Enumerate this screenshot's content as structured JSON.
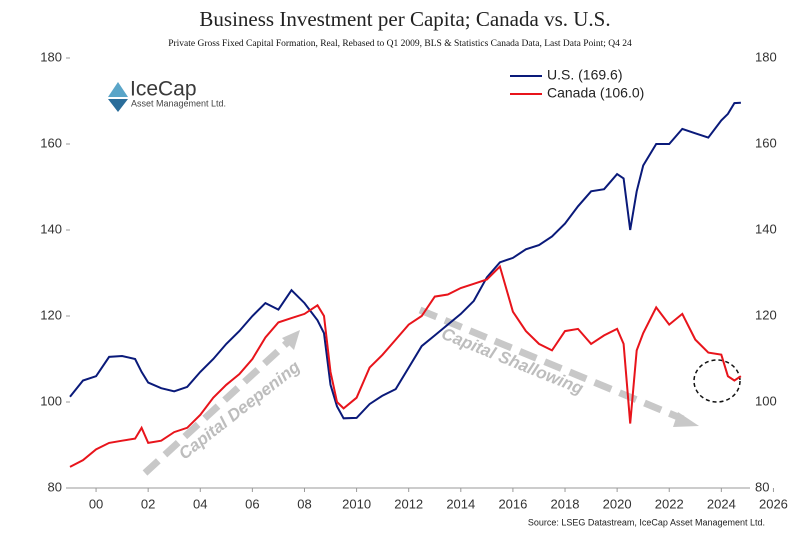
{
  "chart_data": {
    "type": "line",
    "title": "Business Investment per Capita; Canada vs. U.S.",
    "subtitle": "Private Gross Fixed Capital Formation, Real, Rebased to Q1 2009, BLS & Statistics Canada Data, Last Data Point; Q4 24",
    "source": "Source: LSEG Datastream, IceCap Asset Management Ltd.",
    "logo": {
      "name": "IceCap",
      "tagline": "Asset Management Ltd."
    },
    "annotations": [
      "Capital Deepening",
      "Capital Shallowing"
    ],
    "legend": "upper right",
    "x": [
      1999.0,
      1999.5,
      2000.0,
      2000.5,
      2001.0,
      2001.5,
      2001.75,
      2002.0,
      2002.5,
      2003.0,
      2003.5,
      2004.0,
      2004.5,
      2005.0,
      2005.5,
      2006.0,
      2006.5,
      2007.0,
      2007.5,
      2008.0,
      2008.5,
      2008.75,
      2009.0,
      2009.25,
      2009.5,
      2010.0,
      2010.5,
      2011.0,
      2011.5,
      2012.0,
      2012.5,
      2013.0,
      2013.5,
      2014.0,
      2014.5,
      2015.0,
      2015.5,
      2016.0,
      2016.5,
      2017.0,
      2017.5,
      2018.0,
      2018.5,
      2019.0,
      2019.5,
      2020.0,
      2020.25,
      2020.5,
      2020.75,
      2021.0,
      2021.5,
      2022.0,
      2022.5,
      2023.0,
      2023.5,
      2024.0,
      2024.25,
      2024.5,
      2024.75
    ],
    "series": [
      {
        "name": "U.S. (169.6)",
        "color": "#0a1a7a",
        "values": [
          101.2,
          105,
          106,
          110.5,
          110.7,
          110,
          107,
          104.5,
          103.2,
          102.5,
          103.5,
          107,
          110,
          113.5,
          116.5,
          120,
          123,
          121.5,
          126,
          123,
          119,
          116,
          104,
          99,
          96.2,
          96.3,
          99.5,
          101.5,
          103,
          108,
          113,
          115.5,
          118,
          120.5,
          123.5,
          129,
          132.5,
          133.5,
          135.5,
          136.5,
          138.5,
          141.5,
          145.5,
          149,
          149.5,
          153,
          152,
          140,
          149,
          155,
          160,
          160,
          163.5,
          162.5,
          161.5,
          165.5,
          167,
          169.5,
          169.6
        ]
      },
      {
        "name": "Canada (106.0)",
        "color": "#e8141b",
        "values": [
          84.9,
          86.5,
          89,
          90.5,
          91,
          91.5,
          94,
          90.5,
          91,
          93,
          94,
          97,
          101,
          104,
          106.5,
          110,
          115,
          118.5,
          119.5,
          120.5,
          122.5,
          120,
          107,
          100,
          98.5,
          101,
          108,
          111,
          114.5,
          118,
          120,
          124.5,
          125,
          126.5,
          127.5,
          128.5,
          131.5,
          121,
          116.5,
          113.5,
          112,
          116.5,
          117,
          113.5,
          115.5,
          117,
          113.5,
          95,
          112,
          116,
          122,
          118,
          120.5,
          114.5,
          111.5,
          111,
          106,
          105,
          106
        ]
      }
    ],
    "xlim": [
      1999.0,
      2025.1
    ],
    "xticks": [
      {
        "value": 2000,
        "label": "00"
      },
      {
        "value": 2002,
        "label": "02"
      },
      {
        "value": 2004,
        "label": "04"
      },
      {
        "value": 2006,
        "label": "06"
      },
      {
        "value": 2008,
        "label": "08"
      },
      2010,
      2012,
      2014,
      2016,
      2018,
      2020,
      2022,
      2024,
      2026
    ],
    "ylim": [
      80,
      180
    ],
    "yticks": [
      80,
      100,
      120,
      140,
      160,
      180
    ],
    "y2lim": [
      80,
      180
    ],
    "y2ticks": [
      80,
      100,
      120,
      140,
      160,
      180
    ]
  }
}
